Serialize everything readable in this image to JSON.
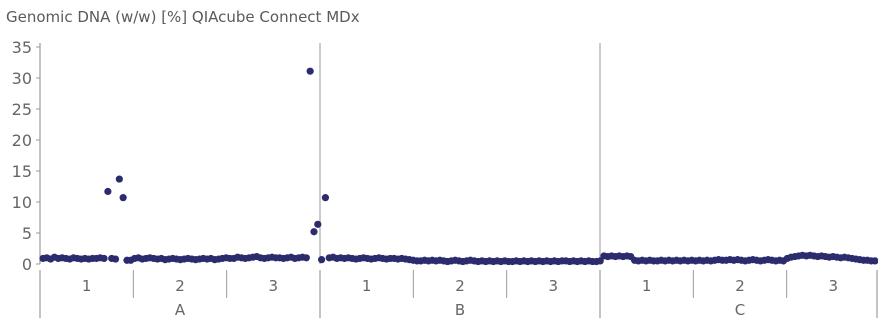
{
  "chart_data": {
    "type": "scatter",
    "title": "Genomic DNA (w/w) [%] QIAcube Connect MDx",
    "xlabel": "",
    "ylabel": "",
    "ylim": [
      0,
      35
    ],
    "yticks": [
      0,
      5,
      10,
      15,
      20,
      25,
      30,
      35
    ],
    "grid": false,
    "color": "#2b2b6e",
    "groups": [
      {
        "label": "A",
        "subgroups": [
          "1",
          "2",
          "3"
        ]
      },
      {
        "label": "B",
        "subgroups": [
          "1",
          "2",
          "3"
        ]
      },
      {
        "label": "C",
        "subgroups": [
          "1",
          "2",
          "3"
        ]
      }
    ],
    "series": [
      {
        "values": [
          0.9,
          1.0,
          0.8,
          1.1,
          0.9,
          1.0,
          0.9,
          0.8,
          1.0,
          0.9,
          0.8,
          0.9,
          0.8,
          0.9,
          0.9,
          1.0,
          0.9,
          11.7,
          0.9,
          0.8,
          13.7,
          10.7,
          0.6,
          0.6,
          0.9,
          1.0,
          0.8,
          0.9,
          1.0,
          0.9,
          0.8,
          0.9,
          0.7,
          0.8,
          0.9,
          0.8,
          0.7,
          0.8,
          0.9,
          0.8,
          0.7,
          0.8,
          0.9,
          0.8,
          0.9,
          0.7,
          0.8,
          0.9,
          1.0,
          0.9,
          0.9,
          1.1,
          1.0,
          0.9,
          1.0,
          1.1,
          1.2,
          1.0,
          0.9,
          1.0,
          1.1,
          1.0,
          1.0,
          0.9,
          1.0,
          1.1,
          0.9,
          1.0,
          1.1,
          1.0,
          31.1,
          5.2,
          6.4,
          0.7,
          10.7,
          1.0,
          1.1,
          0.9,
          1.0,
          0.9,
          1.0,
          0.9,
          0.8,
          0.9,
          1.0,
          0.9,
          0.8,
          0.9,
          1.0,
          0.9,
          0.8,
          0.9,
          0.9,
          0.8,
          0.9,
          0.8,
          0.7,
          0.6,
          0.5,
          0.5,
          0.6,
          0.5,
          0.6,
          0.5,
          0.6,
          0.5,
          0.4,
          0.5,
          0.6,
          0.5,
          0.4,
          0.5,
          0.6,
          0.5,
          0.4,
          0.5,
          0.4,
          0.5,
          0.4,
          0.5,
          0.4,
          0.5,
          0.4,
          0.4,
          0.5,
          0.4,
          0.5,
          0.4,
          0.5,
          0.4,
          0.5,
          0.4,
          0.5,
          0.4,
          0.5,
          0.4,
          0.5,
          0.5,
          0.4,
          0.5,
          0.4,
          0.5,
          0.4,
          0.5,
          0.4,
          0.4,
          0.5,
          1.3,
          1.2,
          1.3,
          1.2,
          1.3,
          1.2,
          1.3,
          1.2,
          0.6,
          0.5,
          0.6,
          0.5,
          0.6,
          0.5,
          0.5,
          0.6,
          0.5,
          0.6,
          0.5,
          0.6,
          0.5,
          0.6,
          0.5,
          0.6,
          0.5,
          0.6,
          0.5,
          0.6,
          0.5,
          0.6,
          0.7,
          0.6,
          0.6,
          0.7,
          0.6,
          0.7,
          0.6,
          0.5,
          0.6,
          0.7,
          0.6,
          0.5,
          0.6,
          0.7,
          0.6,
          0.5,
          0.6,
          0.5,
          0.9,
          1.1,
          1.2,
          1.3,
          1.4,
          1.3,
          1.4,
          1.3,
          1.2,
          1.3,
          1.2,
          1.1,
          1.2,
          1.1,
          1.0,
          1.1,
          1.0,
          0.9,
          0.8,
          0.7,
          0.6,
          0.6,
          0.5,
          0.5
        ]
      }
    ]
  }
}
